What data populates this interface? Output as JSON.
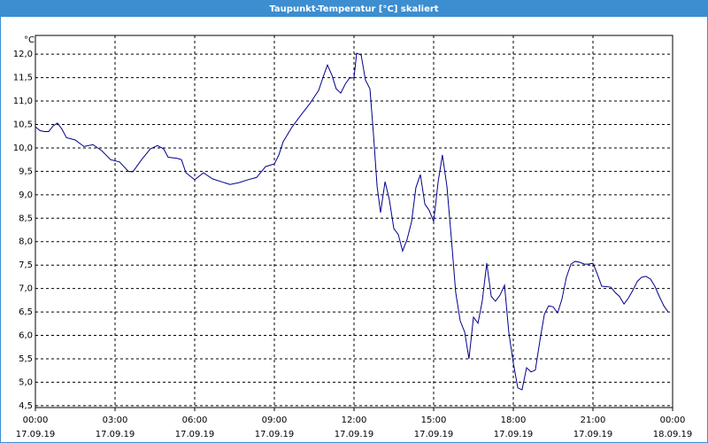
{
  "chart_data": {
    "type": "line",
    "title": "Taupunkt-Temperatur [°C] skaliert",
    "y_unit": "°C",
    "color": "#00008b",
    "grid": true,
    "xlim": [
      0,
      24
    ],
    "ylim": [
      4.46,
      12.4
    ],
    "xticks": [
      {
        "value": 0,
        "label": "00:00"
      },
      {
        "value": 3,
        "label": "03:00"
      },
      {
        "value": 6,
        "label": "06:00"
      },
      {
        "value": 9,
        "label": "09:00"
      },
      {
        "value": 12,
        "label": "12:00"
      },
      {
        "value": 15,
        "label": "15:00"
      },
      {
        "value": 18,
        "label": "18:00"
      },
      {
        "value": 21,
        "label": "21:00"
      },
      {
        "value": 24,
        "label": "00:00"
      }
    ],
    "xtick_dates": [
      "17.09.19",
      "17.09.19",
      "17.09.19",
      "17.09.19",
      "17.09.19",
      "17.09.19",
      "17.09.19",
      "17.09.19",
      "18.09.19"
    ],
    "yticks": [
      {
        "value": 4.5,
        "label": "4,5"
      },
      {
        "value": 5,
        "label": "5,0"
      },
      {
        "value": 5.5,
        "label": "5,5"
      },
      {
        "value": 6,
        "label": "6,0"
      },
      {
        "value": 6.5,
        "label": "6,5"
      },
      {
        "value": 7,
        "label": "7,0"
      },
      {
        "value": 7.5,
        "label": "7,5"
      },
      {
        "value": 8,
        "label": "8,0"
      },
      {
        "value": 8.5,
        "label": "8,5"
      },
      {
        "value": 9,
        "label": "9,0"
      },
      {
        "value": 9.5,
        "label": "9,5"
      },
      {
        "value": 10,
        "label": "10,0"
      },
      {
        "value": 10.5,
        "label": "10,5"
      },
      {
        "value": 11,
        "label": "11,0"
      },
      {
        "value": 11.5,
        "label": "11,5"
      },
      {
        "value": 12,
        "label": "12,0"
      }
    ],
    "x": [
      0,
      0.17,
      0.33,
      0.5,
      0.67,
      0.83,
      1,
      1.17,
      1.5,
      1.83,
      2.17,
      2.5,
      2.83,
      3.17,
      3.5,
      3.67,
      4,
      4.33,
      4.6,
      4.83,
      5,
      5.33,
      5.5,
      5.67,
      6,
      6.33,
      6.67,
      7,
      7.33,
      7.67,
      8,
      8.33,
      8.67,
      9,
      9.17,
      9.33,
      9.67,
      10,
      10.33,
      10.67,
      10.83,
      11,
      11.17,
      11.33,
      11.5,
      11.67,
      11.83,
      12,
      12.1,
      12.27,
      12.43,
      12.6,
      12.73,
      12.87,
      13,
      13.17,
      13.33,
      13.5,
      13.67,
      13.83,
      14,
      14.17,
      14.33,
      14.5,
      14.67,
      14.83,
      15,
      15.17,
      15.33,
      15.5,
      15.67,
      15.83,
      16,
      16.17,
      16.33,
      16.5,
      16.67,
      16.83,
      17,
      17.17,
      17.33,
      17.5,
      17.67,
      17.83,
      18,
      18.17,
      18.33,
      18.5,
      18.67,
      18.83,
      19,
      19.17,
      19.33,
      19.5,
      19.67,
      19.83,
      20,
      20.17,
      20.33,
      20.5,
      20.67,
      20.83,
      21,
      21.17,
      21.33,
      21.67,
      21.83,
      22,
      22.17,
      22.33,
      22.5,
      22.67,
      22.83,
      23,
      23.17,
      23.33,
      23.5,
      23.67,
      23.83
    ],
    "values": [
      10.45,
      10.37,
      10.35,
      10.35,
      10.47,
      10.53,
      10.4,
      10.22,
      10.17,
      10.03,
      10.07,
      9.94,
      9.75,
      9.7,
      9.5,
      9.49,
      9.75,
      9.98,
      10.05,
      9.98,
      9.8,
      9.78,
      9.75,
      9.47,
      9.32,
      9.47,
      9.34,
      9.28,
      9.22,
      9.26,
      9.32,
      9.37,
      9.6,
      9.66,
      9.85,
      10.13,
      10.45,
      10.7,
      10.94,
      11.23,
      11.5,
      11.77,
      11.55,
      11.26,
      11.17,
      11.36,
      11.49,
      11.5,
      12.02,
      11.98,
      11.45,
      11.26,
      10.32,
      9.18,
      8.62,
      9.28,
      8.9,
      8.28,
      8.15,
      7.8,
      8.05,
      8.43,
      9.15,
      9.43,
      8.8,
      8.67,
      8.43,
      9.28,
      9.85,
      9.18,
      8.05,
      6.92,
      6.31,
      6.07,
      5.5,
      6.39,
      6.26,
      6.73,
      7.54,
      6.83,
      6.73,
      6.86,
      7.07,
      6.07,
      5.41,
      4.88,
      4.84,
      5.31,
      5.22,
      5.26,
      5.88,
      6.45,
      6.63,
      6.61,
      6.48,
      6.77,
      7.24,
      7.52,
      7.58,
      7.56,
      7.52,
      7.52,
      7.54,
      7.3,
      7.05,
      7.03,
      6.92,
      6.83,
      6.67,
      6.79,
      6.96,
      7.15,
      7.24,
      7.26,
      7.2,
      7.05,
      6.83,
      6.63,
      6.5
    ]
  }
}
